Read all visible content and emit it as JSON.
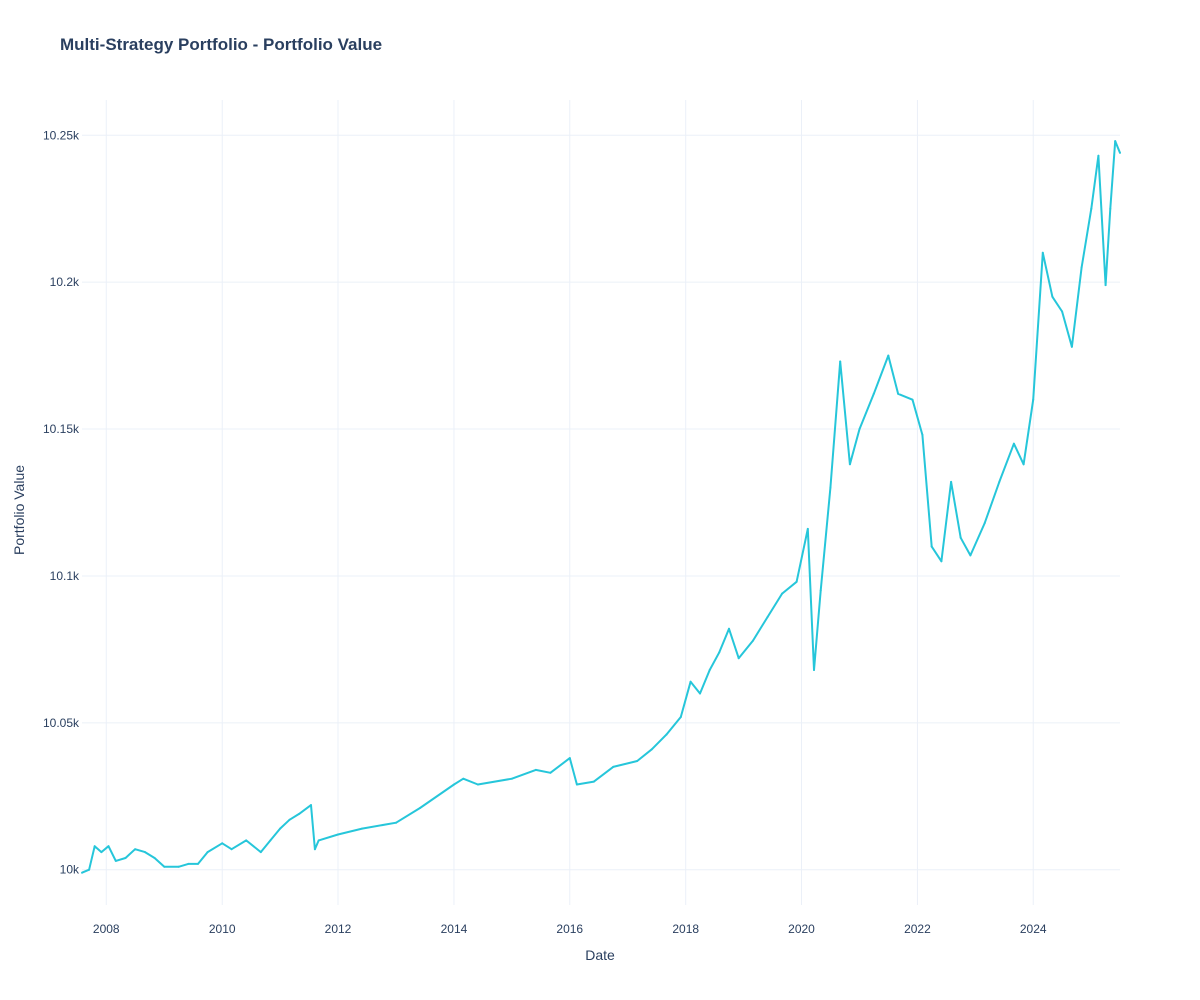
{
  "chart_data": {
    "type": "line",
    "title": "Multi-Strategy Portfolio - Portfolio Value",
    "xlabel": "Date",
    "ylabel": "Portfolio Value",
    "xlim": [
      "2007-08-01",
      "2025-07-01"
    ],
    "ylim": [
      9988,
      10262
    ],
    "x_ticks": [
      {
        "date": "2008-01-01",
        "label": "2008"
      },
      {
        "date": "2010-01-01",
        "label": "2010"
      },
      {
        "date": "2012-01-01",
        "label": "2012"
      },
      {
        "date": "2014-01-01",
        "label": "2014"
      },
      {
        "date": "2016-01-01",
        "label": "2016"
      },
      {
        "date": "2018-01-01",
        "label": "2018"
      },
      {
        "date": "2020-01-01",
        "label": "2020"
      },
      {
        "date": "2022-01-01",
        "label": "2022"
      },
      {
        "date": "2024-01-01",
        "label": "2024"
      }
    ],
    "y_ticks": [
      {
        "value": 10000,
        "label": "10k"
      },
      {
        "value": 10050,
        "label": "10.05k"
      },
      {
        "value": 10100,
        "label": "10.1k"
      },
      {
        "value": 10150,
        "label": "10.15k"
      },
      {
        "value": 10200,
        "label": "10.2k"
      },
      {
        "value": 10250,
        "label": "10.25k"
      }
    ],
    "grid": true,
    "colors": {
      "line": "#26c6da",
      "grid": "#ebf0f8",
      "text": "#2a3f5f"
    },
    "series": [
      {
        "values": [
          [
            "2007-08-01",
            9999
          ],
          [
            "2007-09-15",
            10000
          ],
          [
            "2007-10-20",
            10008
          ],
          [
            "2007-12-01",
            10006
          ],
          [
            "2008-01-15",
            10008
          ],
          [
            "2008-03-01",
            10003
          ],
          [
            "2008-05-01",
            10004
          ],
          [
            "2008-07-01",
            10007
          ],
          [
            "2008-09-01",
            10006
          ],
          [
            "2008-11-01",
            10004
          ],
          [
            "2009-01-01",
            10001
          ],
          [
            "2009-04-01",
            10001
          ],
          [
            "2009-06-01",
            10002
          ],
          [
            "2009-08-01",
            10002
          ],
          [
            "2009-10-01",
            10006
          ],
          [
            "2010-01-01",
            10009
          ],
          [
            "2010-03-01",
            10007
          ],
          [
            "2010-06-01",
            10010
          ],
          [
            "2010-09-01",
            10006
          ],
          [
            "2010-11-01",
            10010
          ],
          [
            "2011-01-01",
            10014
          ],
          [
            "2011-03-01",
            10017
          ],
          [
            "2011-05-01",
            10019
          ],
          [
            "2011-07-15",
            10022
          ],
          [
            "2011-08-08",
            10007
          ],
          [
            "2011-09-01",
            10010
          ],
          [
            "2012-01-01",
            10012
          ],
          [
            "2012-06-01",
            10014
          ],
          [
            "2013-01-01",
            10016
          ],
          [
            "2013-06-01",
            10021
          ],
          [
            "2014-01-01",
            10029
          ],
          [
            "2014-03-01",
            10031
          ],
          [
            "2014-06-01",
            10029
          ],
          [
            "2015-01-01",
            10031
          ],
          [
            "2015-06-01",
            10034
          ],
          [
            "2015-09-01",
            10033
          ],
          [
            "2016-01-01",
            10038
          ],
          [
            "2016-02-15",
            10029
          ],
          [
            "2016-06-01",
            10030
          ],
          [
            "2016-10-01",
            10035
          ],
          [
            "2017-03-01",
            10037
          ],
          [
            "2017-06-01",
            10041
          ],
          [
            "2017-09-01",
            10046
          ],
          [
            "2017-12-01",
            10052
          ],
          [
            "2018-02-01",
            10064
          ],
          [
            "2018-04-01",
            10060
          ],
          [
            "2018-06-01",
            10068
          ],
          [
            "2018-08-01",
            10074
          ],
          [
            "2018-10-01",
            10082
          ],
          [
            "2018-12-01",
            10072
          ],
          [
            "2019-03-01",
            10078
          ],
          [
            "2019-06-01",
            10086
          ],
          [
            "2019-09-01",
            10094
          ],
          [
            "2019-12-01",
            10098
          ],
          [
            "2020-02-10",
            10116
          ],
          [
            "2020-03-20",
            10068
          ],
          [
            "2020-05-01",
            10095
          ],
          [
            "2020-07-01",
            10130
          ],
          [
            "2020-09-01",
            10173
          ],
          [
            "2020-11-01",
            10138
          ],
          [
            "2021-01-01",
            10150
          ],
          [
            "2021-04-01",
            10162
          ],
          [
            "2021-07-01",
            10175
          ],
          [
            "2021-09-01",
            10162
          ],
          [
            "2021-12-01",
            10160
          ],
          [
            "2022-02-01",
            10148
          ],
          [
            "2022-04-01",
            10110
          ],
          [
            "2022-06-01",
            10105
          ],
          [
            "2022-08-01",
            10132
          ],
          [
            "2022-10-01",
            10113
          ],
          [
            "2022-12-01",
            10107
          ],
          [
            "2023-03-01",
            10118
          ],
          [
            "2023-06-01",
            10132
          ],
          [
            "2023-09-01",
            10145
          ],
          [
            "2023-11-01",
            10138
          ],
          [
            "2024-01-01",
            10160
          ],
          [
            "2024-03-01",
            10210
          ],
          [
            "2024-05-01",
            10195
          ],
          [
            "2024-07-01",
            10190
          ],
          [
            "2024-09-01",
            10178
          ],
          [
            "2024-11-01",
            10205
          ],
          [
            "2025-01-01",
            10225
          ],
          [
            "2025-02-15",
            10243
          ],
          [
            "2025-04-01",
            10199
          ],
          [
            "2025-05-01",
            10225
          ],
          [
            "2025-06-01",
            10248
          ],
          [
            "2025-07-01",
            10244
          ]
        ]
      }
    ]
  }
}
